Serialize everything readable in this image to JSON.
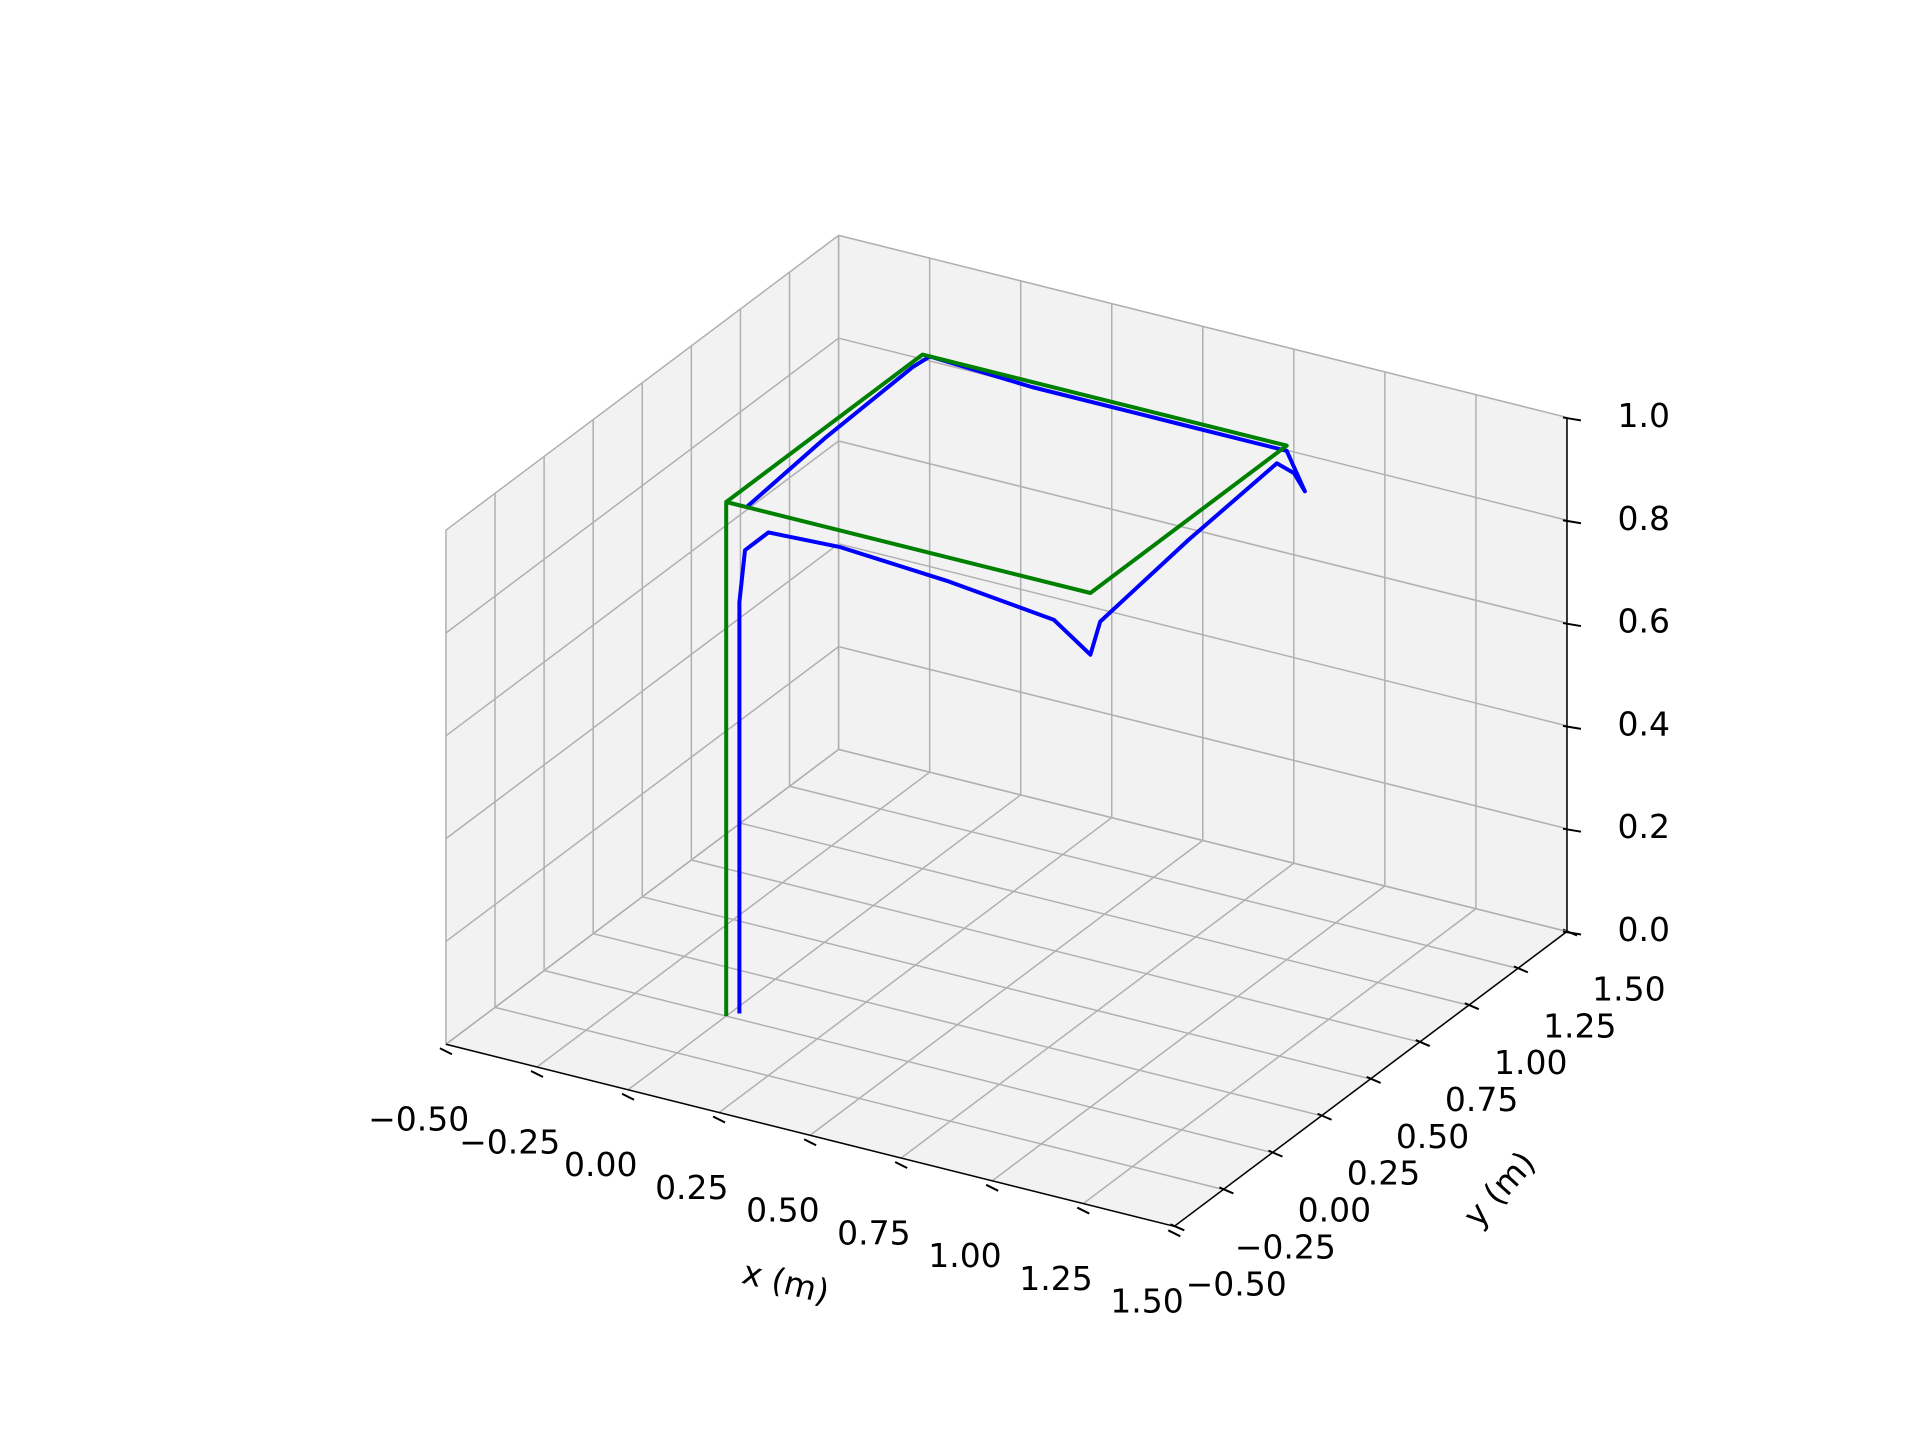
{
  "chart_data": {
    "type": "line3d",
    "xlabel": "x (m)",
    "ylabel": "y (m)",
    "xlim": [
      -0.5,
      1.5
    ],
    "ylim": [
      -0.5,
      1.5
    ],
    "zlim": [
      0,
      1
    ],
    "xticks": [
      {
        "value": -0.5,
        "label": "−0.50"
      },
      {
        "value": -0.25,
        "label": "−0.25"
      },
      {
        "value": 0,
        "label": "0.00"
      },
      {
        "value": 0.25,
        "label": "0.25"
      },
      {
        "value": 0.5,
        "label": "0.50"
      },
      {
        "value": 0.75,
        "label": "0.75"
      },
      {
        "value": 1,
        "label": "1.00"
      },
      {
        "value": 1.25,
        "label": "1.25"
      },
      {
        "value": 1.5,
        "label": "1.50"
      }
    ],
    "yticks": [
      {
        "value": -0.5,
        "label": "−0.50"
      },
      {
        "value": -0.25,
        "label": "−0.25"
      },
      {
        "value": 0,
        "label": "0.00"
      },
      {
        "value": 0.25,
        "label": "0.25"
      },
      {
        "value": 0.5,
        "label": "0.50"
      },
      {
        "value": 0.75,
        "label": "0.75"
      },
      {
        "value": 1,
        "label": "1.00"
      },
      {
        "value": 1.25,
        "label": "1.25"
      },
      {
        "value": 1.5,
        "label": "1.50"
      }
    ],
    "zticks": [
      {
        "value": 0,
        "label": "0.0"
      },
      0.2,
      0.4,
      0.6,
      0.8,
      {
        "value": 1,
        "label": "1.0"
      }
    ],
    "grid": true,
    "series": [
      {
        "color": "#0000ff",
        "x": [
          0.02,
          0.02,
          0.02,
          0.03,
          0.1,
          0.3,
          0.6,
          0.9,
          1.0,
          1.0,
          1.0,
          1.0,
          1.02,
          1.05,
          1.0,
          0.7,
          0.3,
          0.02,
          0.0,
          0.0,
          0.0
        ],
        "y": [
          0.03,
          0.03,
          0.03,
          0.04,
          0.03,
          0.02,
          0.01,
          0.0,
          0.0,
          0.05,
          0.5,
          0.95,
          1.0,
          1.0,
          1.0,
          1.0,
          1.0,
          1.0,
          0.95,
          0.5,
          0.1
        ],
        "z": [
          0,
          0.5,
          0.8,
          0.9,
          0.95,
          0.96,
          0.95,
          0.93,
          0.88,
          0.93,
          0.96,
          0.98,
          0.95,
          0.92,
          0.99,
          0.99,
          0.99,
          1.0,
          0.99,
          0.98,
          0.96
        ]
      },
      {
        "color": "#008000",
        "x": [
          0,
          0,
          1,
          1,
          0,
          0
        ],
        "y": [
          0,
          0,
          0,
          1,
          1,
          0
        ],
        "z": [
          0,
          1,
          1,
          1,
          1,
          1
        ]
      }
    ]
  }
}
